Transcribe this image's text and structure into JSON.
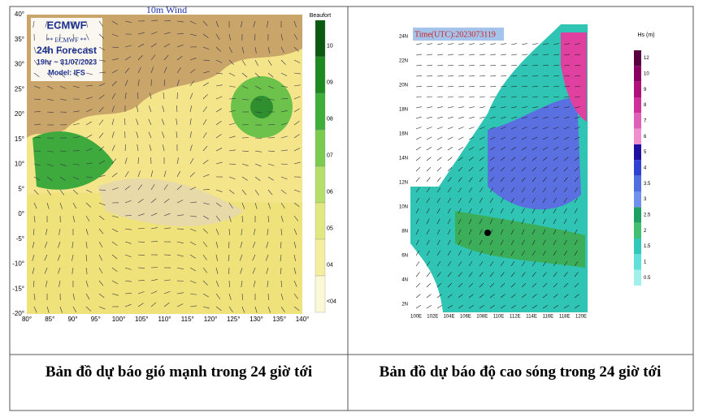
{
  "left_map": {
    "title": "10m Wind",
    "logo": "ECMWF",
    "badge": "** ECMWF **",
    "forecast": "24h Forecast",
    "time": "19hr ~ 31/07/2023",
    "model": "Model: IFS",
    "lat_labels": [
      "40°",
      "35°",
      "30°",
      "25°",
      "20°",
      "15°",
      "10°",
      "5°",
      "0°",
      "-5°",
      "-10°",
      "-15°",
      "-20°"
    ],
    "lon_labels": [
      "80°",
      "85°",
      "90°",
      "95°",
      "100°",
      "105°",
      "110°",
      "115°",
      "120°",
      "125°",
      "130°",
      "135°",
      "140°"
    ],
    "legend_title": "Beaufort",
    "legend_labels": [
      "10",
      "09",
      "08",
      "07",
      "06",
      "05",
      "04",
      "<04"
    ]
  },
  "right_map": {
    "time": "Time(UTC):2023073119",
    "legend_title": "Hs (m)",
    "legend_labels": [
      "12",
      "10",
      "9",
      "8",
      "7",
      "6",
      "5",
      "4",
      "3.5",
      "3",
      "2.5",
      "2",
      "1.5",
      "1",
      "0.5"
    ],
    "lat_labels": [
      "24N",
      "22N",
      "20N",
      "18N",
      "16N",
      "14N",
      "12N",
      "10N",
      "8N",
      "6N",
      "4N",
      "2N"
    ],
    "lon_labels": [
      "100E",
      "102E",
      "104E",
      "106E",
      "108E",
      "110E",
      "112E",
      "114E",
      "116E",
      "118E",
      "120E"
    ]
  },
  "captions": [
    "Bản đồ dự báo gió mạnh trong 24 giờ tới",
    "Bản đồ dự báo độ cao sóng trong 24 giờ tới"
  ]
}
